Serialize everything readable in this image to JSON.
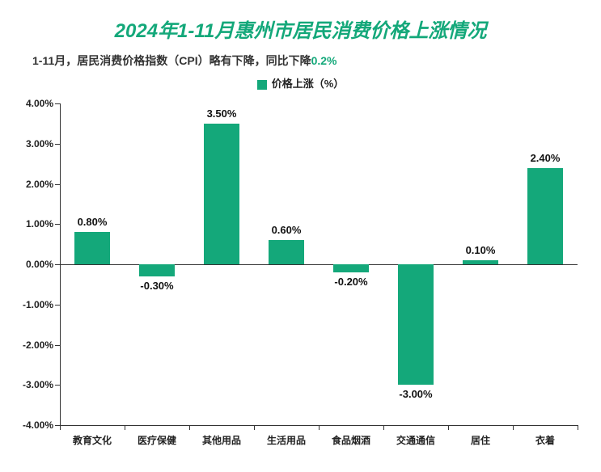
{
  "title": "2024年1-11月惠州市居民消费价格上涨情况",
  "subtitle_prefix": "1-11月，居民消费价格指数（CPI）略有下降，同比下降",
  "subtitle_highlight": "0.2%",
  "legend_label": "价格上涨（%）",
  "chart": {
    "type": "bar",
    "categories": [
      "教育文化",
      "医疗保健",
      "其他用品",
      "生活用品",
      "食品烟酒",
      "交通通信",
      "居住",
      "衣着"
    ],
    "values": [
      0.8,
      -0.3,
      3.5,
      0.6,
      -0.2,
      -3.0,
      0.1,
      2.4
    ],
    "value_labels": [
      "0.80%",
      "-0.30%",
      "3.50%",
      "0.60%",
      "-0.20%",
      "-3.00%",
      "0.10%",
      "2.40%"
    ],
    "bar_color": "#14a87a",
    "ymin": -4.0,
    "ymax": 4.0,
    "ytick_step": 1.0,
    "ytick_labels": [
      "-4.00%",
      "-3.00%",
      "-2.00%",
      "-1.00%",
      "0.00%",
      "1.00%",
      "2.00%",
      "3.00%",
      "4.00%"
    ],
    "background_color": "#ffffff",
    "axis_color": "#333333",
    "bar_width_ratio": 0.55,
    "title_fontsize": 24,
    "subtitle_fontsize": 14,
    "label_fontsize": 13,
    "tick_fontsize": 12
  }
}
